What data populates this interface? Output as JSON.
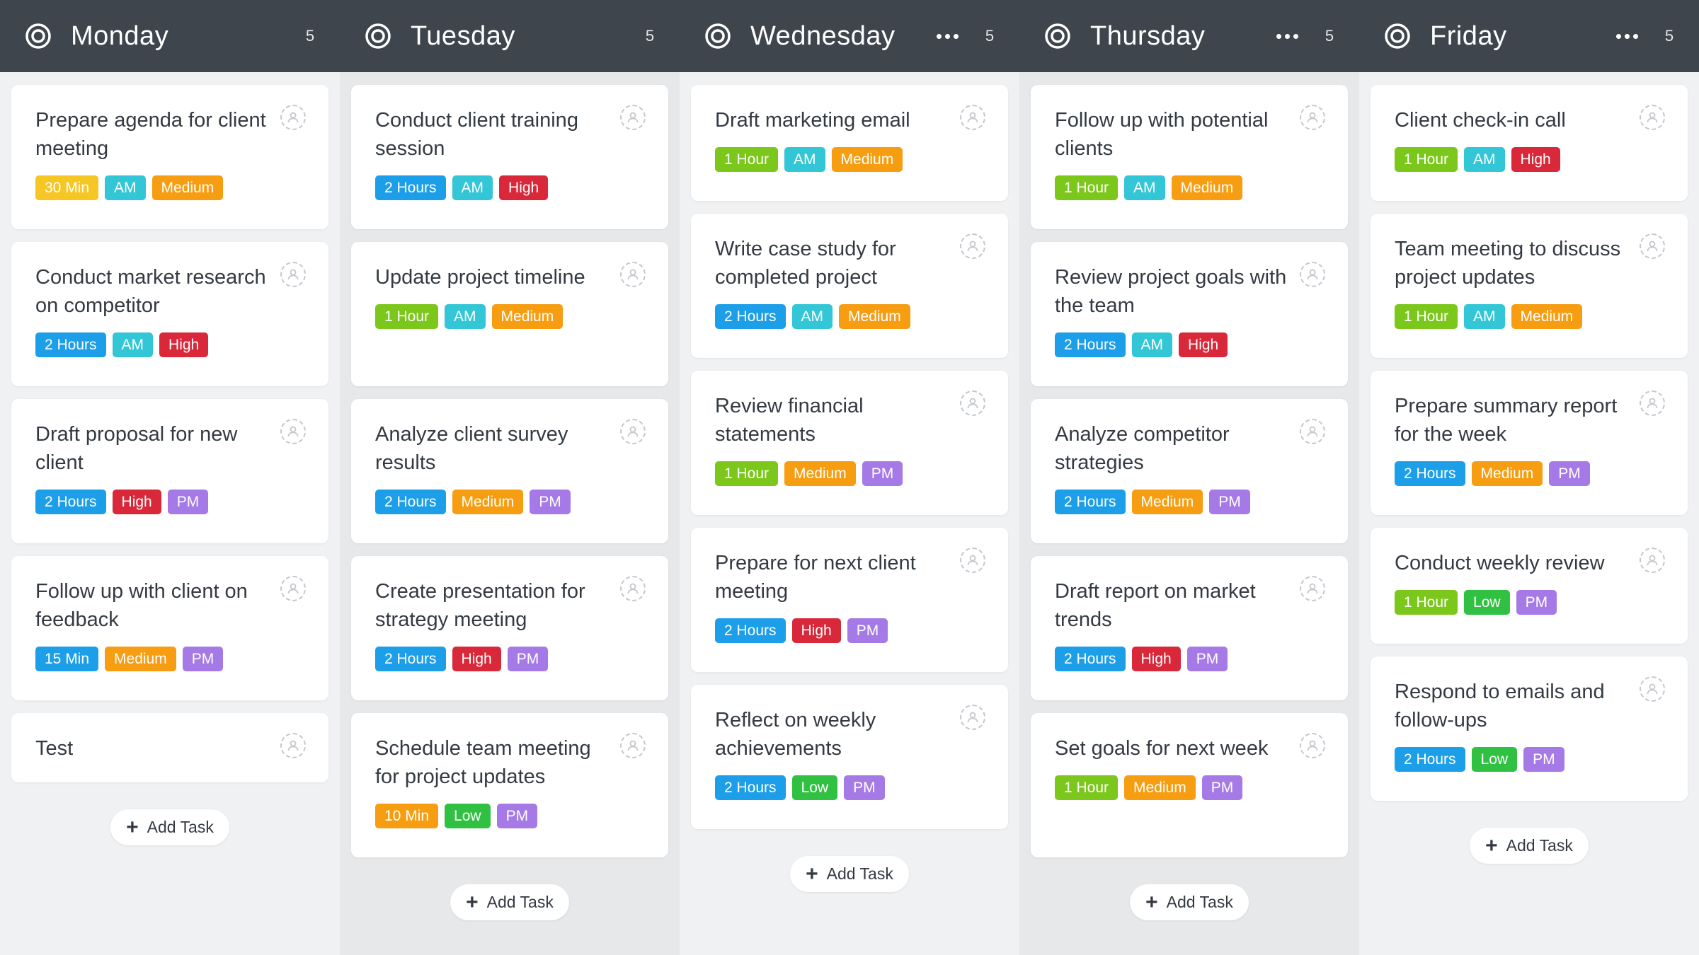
{
  "colors": {
    "header_bg": "#3f454d",
    "tag_time_30min": "#f6c624",
    "tag_time_hours": "#1c9ee8",
    "tag_time_hour": "#7cc71b",
    "tag_time_15min": "#1c9ee8",
    "tag_time_10min": "#f79d11",
    "tag_am": "#33c6d6",
    "tag_pm": "#a57ae6",
    "tag_high": "#d8283a",
    "tag_medium": "#f79d11",
    "tag_low": "#31c142"
  },
  "add_task_label": "Add Task",
  "columns": [
    {
      "title": "Monday",
      "count": "5",
      "has_more": false,
      "cards": [
        {
          "title": "Prepare agenda for client meeting",
          "tags": [
            {
              "label": "30 Min",
              "color": "#f6c624"
            },
            {
              "label": "AM",
              "color": "#33c6d6"
            },
            {
              "label": "Medium",
              "color": "#f79d11"
            }
          ]
        },
        {
          "title": "Conduct market research on competitor",
          "tags": [
            {
              "label": "2 Hours",
              "color": "#1c9ee8"
            },
            {
              "label": "AM",
              "color": "#33c6d6"
            },
            {
              "label": "High",
              "color": "#d8283a"
            }
          ]
        },
        {
          "title": "Draft proposal for new client",
          "tags": [
            {
              "label": "2 Hours",
              "color": "#1c9ee8"
            },
            {
              "label": "High",
              "color": "#d8283a"
            },
            {
              "label": "PM",
              "color": "#a57ae6"
            }
          ]
        },
        {
          "title": "Follow up with client on feedback",
          "tags": [
            {
              "label": "15 Min",
              "color": "#1c9ee8"
            },
            {
              "label": "Medium",
              "color": "#f79d11"
            },
            {
              "label": "PM",
              "color": "#a57ae6"
            }
          ]
        },
        {
          "title": "Test",
          "tags": []
        }
      ]
    },
    {
      "title": "Tuesday",
      "count": "5",
      "has_more": false,
      "cards": [
        {
          "title": "Conduct client training session",
          "tags": [
            {
              "label": "2 Hours",
              "color": "#1c9ee8"
            },
            {
              "label": "AM",
              "color": "#33c6d6"
            },
            {
              "label": "High",
              "color": "#d8283a"
            }
          ]
        },
        {
          "title": "Update project timeline",
          "tags": [
            {
              "label": "1 Hour",
              "color": "#7cc71b"
            },
            {
              "label": "AM",
              "color": "#33c6d6"
            },
            {
              "label": "Medium",
              "color": "#f79d11"
            }
          ]
        },
        {
          "title": "Analyze client survey results",
          "tags": [
            {
              "label": "2 Hours",
              "color": "#1c9ee8"
            },
            {
              "label": "Medium",
              "color": "#f79d11"
            },
            {
              "label": "PM",
              "color": "#a57ae6"
            }
          ]
        },
        {
          "title": "Create presentation for strategy meeting",
          "tags": [
            {
              "label": "2 Hours",
              "color": "#1c9ee8"
            },
            {
              "label": "High",
              "color": "#d8283a"
            },
            {
              "label": "PM",
              "color": "#a57ae6"
            }
          ]
        },
        {
          "title": "Schedule team meeting for project updates",
          "tags": [
            {
              "label": "10 Min",
              "color": "#f79d11"
            },
            {
              "label": "Low",
              "color": "#31c142"
            },
            {
              "label": "PM",
              "color": "#a57ae6"
            }
          ]
        }
      ]
    },
    {
      "title": "Wednesday",
      "count": "5",
      "has_more": true,
      "cards": [
        {
          "title": "Draft marketing email",
          "tags": [
            {
              "label": "1 Hour",
              "color": "#7cc71b"
            },
            {
              "label": "AM",
              "color": "#33c6d6"
            },
            {
              "label": "Medium",
              "color": "#f79d11"
            }
          ]
        },
        {
          "title": "Write case study for completed project",
          "tags": [
            {
              "label": "2 Hours",
              "color": "#1c9ee8"
            },
            {
              "label": "AM",
              "color": "#33c6d6"
            },
            {
              "label": "Medium",
              "color": "#f79d11"
            }
          ]
        },
        {
          "title": "Review financial statements",
          "tags": [
            {
              "label": "1 Hour",
              "color": "#7cc71b"
            },
            {
              "label": "Medium",
              "color": "#f79d11"
            },
            {
              "label": "PM",
              "color": "#a57ae6"
            }
          ]
        },
        {
          "title": "Prepare for next client meeting",
          "tags": [
            {
              "label": "2 Hours",
              "color": "#1c9ee8"
            },
            {
              "label": "High",
              "color": "#d8283a"
            },
            {
              "label": "PM",
              "color": "#a57ae6"
            }
          ]
        },
        {
          "title": "Reflect on weekly achievements",
          "tags": [
            {
              "label": "2 Hours",
              "color": "#1c9ee8"
            },
            {
              "label": "Low",
              "color": "#31c142"
            },
            {
              "label": "PM",
              "color": "#a57ae6"
            }
          ]
        }
      ]
    },
    {
      "title": "Thursday",
      "count": "5",
      "has_more": true,
      "cards": [
        {
          "title": "Follow up with potential clients",
          "tags": [
            {
              "label": "1 Hour",
              "color": "#7cc71b"
            },
            {
              "label": "AM",
              "color": "#33c6d6"
            },
            {
              "label": "Medium",
              "color": "#f79d11"
            }
          ]
        },
        {
          "title": "Review project goals with the team",
          "tags": [
            {
              "label": "2 Hours",
              "color": "#1c9ee8"
            },
            {
              "label": "AM",
              "color": "#33c6d6"
            },
            {
              "label": "High",
              "color": "#d8283a"
            }
          ]
        },
        {
          "title": "Analyze competitor strategies",
          "tags": [
            {
              "label": "2 Hours",
              "color": "#1c9ee8"
            },
            {
              "label": "Medium",
              "color": "#f79d11"
            },
            {
              "label": "PM",
              "color": "#a57ae6"
            }
          ]
        },
        {
          "title": "Draft report on market trends",
          "tags": [
            {
              "label": "2 Hours",
              "color": "#1c9ee8"
            },
            {
              "label": "High",
              "color": "#d8283a"
            },
            {
              "label": "PM",
              "color": "#a57ae6"
            }
          ]
        },
        {
          "title": "Set goals for next week",
          "tags": [
            {
              "label": "1 Hour",
              "color": "#7cc71b"
            },
            {
              "label": "Medium",
              "color": "#f79d11"
            },
            {
              "label": "PM",
              "color": "#a57ae6"
            }
          ]
        }
      ]
    },
    {
      "title": "Friday",
      "count": "5",
      "has_more": true,
      "cards": [
        {
          "title": "Client check-in call",
          "tags": [
            {
              "label": "1 Hour",
              "color": "#7cc71b"
            },
            {
              "label": "AM",
              "color": "#33c6d6"
            },
            {
              "label": "High",
              "color": "#d8283a"
            }
          ]
        },
        {
          "title": "Team meeting to discuss project updates",
          "tags": [
            {
              "label": "1 Hour",
              "color": "#7cc71b"
            },
            {
              "label": "AM",
              "color": "#33c6d6"
            },
            {
              "label": "Medium",
              "color": "#f79d11"
            }
          ]
        },
        {
          "title": "Prepare summary report for the week",
          "tags": [
            {
              "label": "2 Hours",
              "color": "#1c9ee8"
            },
            {
              "label": "Medium",
              "color": "#f79d11"
            },
            {
              "label": "PM",
              "color": "#a57ae6"
            }
          ]
        },
        {
          "title": "Conduct weekly review",
          "tags": [
            {
              "label": "1 Hour",
              "color": "#7cc71b"
            },
            {
              "label": "Low",
              "color": "#31c142"
            },
            {
              "label": "PM",
              "color": "#a57ae6"
            }
          ]
        },
        {
          "title": "Respond to emails and follow-ups",
          "tags": [
            {
              "label": "2 Hours",
              "color": "#1c9ee8"
            },
            {
              "label": "Low",
              "color": "#31c142"
            },
            {
              "label": "PM",
              "color": "#a57ae6"
            }
          ]
        }
      ]
    }
  ]
}
